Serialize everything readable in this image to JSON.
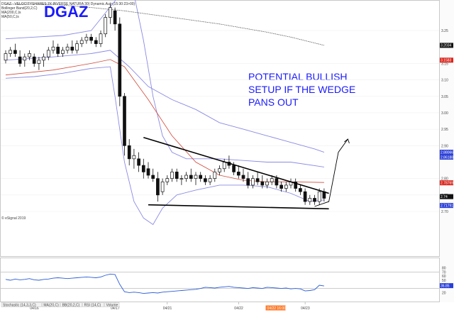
{
  "header": {
    "line1": "DGAZ - VELOCITYSHARES 3X INVERSE NATURA 30) Dynamic.Auto(15:30:23>00)",
    "line2": "Bollinger Band(20,2,C)",
    "line3": "MA(200,C,ls",
    "line4": "MA(50,C,ls"
  },
  "ticker": "DGAZ",
  "annotation_lines": [
    "POTENTIAL BULLISH",
    "SETUP IF THE WEDGE",
    "PANS OUT"
  ],
  "footer_tabs": [
    "Stochastic (14,3,3,C)",
    "MA(20,C)",
    "BB(20,2,C)",
    "RSI (14,C)",
    "Volume"
  ],
  "watermark": "© eSignal 2019",
  "colors": {
    "ticker_blue": "#1a1aff",
    "bollinger": "#8a8ae6",
    "ma50": "#d24a3a",
    "ma200": "#555555",
    "rsi_line": "#2a5bd6",
    "candle": "#111111",
    "tag_black": "#111111",
    "tag_red": "#d9251c",
    "tag_blue": "#2a3fd6",
    "date_tag": "#ff7a2a"
  },
  "chart_data": [
    {
      "type": "candlestick",
      "x_labels": [
        "04/16",
        "04/17",
        "04/21",
        "04/22",
        "04/23"
      ],
      "highlighted_x_label": "04/22 16:00",
      "yticks": [
        "3.25",
        "3.15",
        "3.10",
        "3.05",
        "3.00",
        "2.95",
        "2.90",
        "2.80",
        "2.75",
        "2.70"
      ],
      "ylim": [
        2.7,
        3.33
      ],
      "price_tags": [
        {
          "label": "3.2034",
          "value": 3.205,
          "style": "black"
        },
        {
          "label": "3.1583",
          "value": 3.16,
          "style": "red"
        },
        {
          "label": "2.88066",
          "value": 2.88,
          "style": "blue"
        },
        {
          "label": "2.86188",
          "value": 2.865,
          "style": "blue"
        },
        {
          "label": "2.78769",
          "value": 2.787,
          "style": "red"
        },
        {
          "label": "2.74",
          "value": 2.745,
          "style": "black"
        },
        {
          "label": "2.71791",
          "value": 2.718,
          "style": "blue"
        }
      ],
      "ohlc": [
        [
          3.16,
          3.19,
          3.15,
          3.18
        ],
        [
          3.18,
          3.2,
          3.17,
          3.19
        ],
        [
          3.19,
          3.21,
          3.17,
          3.18
        ],
        [
          3.17,
          3.19,
          3.14,
          3.15
        ],
        [
          3.16,
          3.18,
          3.14,
          3.17
        ],
        [
          3.17,
          3.19,
          3.16,
          3.18
        ],
        [
          3.17,
          3.18,
          3.14,
          3.15
        ],
        [
          3.15,
          3.17,
          3.13,
          3.16
        ],
        [
          3.16,
          3.18,
          3.14,
          3.17
        ],
        [
          3.17,
          3.2,
          3.16,
          3.19
        ],
        [
          3.19,
          3.22,
          3.18,
          3.2
        ],
        [
          3.2,
          3.21,
          3.17,
          3.18
        ],
        [
          3.18,
          3.2,
          3.17,
          3.19
        ],
        [
          3.19,
          3.21,
          3.18,
          3.2
        ],
        [
          3.2,
          3.22,
          3.18,
          3.19
        ],
        [
          3.19,
          3.22,
          3.18,
          3.21
        ],
        [
          3.21,
          3.23,
          3.2,
          3.22
        ],
        [
          3.22,
          3.24,
          3.21,
          3.23
        ],
        [
          3.23,
          3.24,
          3.21,
          3.22
        ],
        [
          3.22,
          3.23,
          3.2,
          3.21
        ],
        [
          3.21,
          3.25,
          3.2,
          3.24
        ],
        [
          3.24,
          3.3,
          3.23,
          3.29
        ],
        [
          3.29,
          3.33,
          3.27,
          3.32
        ],
        [
          3.31,
          3.32,
          3.25,
          3.27
        ],
        [
          3.27,
          3.29,
          3.02,
          3.05
        ],
        [
          3.05,
          3.06,
          2.87,
          2.9
        ],
        [
          2.9,
          2.92,
          2.84,
          2.86
        ],
        [
          2.86,
          2.89,
          2.83,
          2.87
        ],
        [
          2.86,
          2.88,
          2.82,
          2.84
        ],
        [
          2.84,
          2.86,
          2.8,
          2.82
        ],
        [
          2.83,
          2.85,
          2.8,
          2.81
        ],
        [
          2.81,
          2.83,
          2.79,
          2.8
        ],
        [
          2.8,
          2.82,
          2.73,
          2.75
        ],
        [
          2.76,
          2.8,
          2.75,
          2.79
        ],
        [
          2.79,
          2.81,
          2.78,
          2.8
        ],
        [
          2.8,
          2.83,
          2.79,
          2.82
        ],
        [
          2.82,
          2.83,
          2.79,
          2.8
        ],
        [
          2.8,
          2.81,
          2.78,
          2.8
        ],
        [
          2.8,
          2.82,
          2.79,
          2.81
        ],
        [
          2.81,
          2.83,
          2.79,
          2.8
        ],
        [
          2.8,
          2.82,
          2.78,
          2.81
        ],
        [
          2.81,
          2.82,
          2.79,
          2.8
        ],
        [
          2.8,
          2.81,
          2.78,
          2.79
        ],
        [
          2.79,
          2.81,
          2.78,
          2.8
        ],
        [
          2.8,
          2.83,
          2.79,
          2.82
        ],
        [
          2.82,
          2.84,
          2.81,
          2.83
        ],
        [
          2.83,
          2.86,
          2.82,
          2.85
        ],
        [
          2.85,
          2.87,
          2.83,
          2.84
        ],
        [
          2.84,
          2.85,
          2.81,
          2.82
        ],
        [
          2.82,
          2.84,
          2.8,
          2.81
        ],
        [
          2.81,
          2.83,
          2.79,
          2.8
        ],
        [
          2.8,
          2.82,
          2.77,
          2.78
        ],
        [
          2.78,
          2.81,
          2.77,
          2.8
        ],
        [
          2.8,
          2.82,
          2.78,
          2.79
        ],
        [
          2.79,
          2.81,
          2.77,
          2.78
        ],
        [
          2.78,
          2.8,
          2.77,
          2.79
        ],
        [
          2.79,
          2.81,
          2.78,
          2.8
        ],
        [
          2.8,
          2.81,
          2.77,
          2.78
        ],
        [
          2.78,
          2.79,
          2.76,
          2.77
        ],
        [
          2.77,
          2.79,
          2.76,
          2.78
        ],
        [
          2.78,
          2.8,
          2.77,
          2.79
        ],
        [
          2.79,
          2.8,
          2.76,
          2.77
        ],
        [
          2.77,
          2.78,
          2.75,
          2.76
        ],
        [
          2.76,
          2.77,
          2.72,
          2.73
        ],
        [
          2.73,
          2.75,
          2.72,
          2.74
        ],
        [
          2.74,
          2.75,
          2.72,
          2.73
        ],
        [
          2.73,
          2.77,
          2.72,
          2.76
        ],
        [
          2.76,
          2.77,
          2.73,
          2.74
        ]
      ],
      "overlays": {
        "bollinger_upper": [
          [
            0,
            3.225
          ],
          [
            6,
            3.23
          ],
          [
            12,
            3.235
          ],
          [
            18,
            3.25
          ],
          [
            23,
            3.34
          ],
          [
            25,
            3.4
          ],
          [
            27,
            3.36
          ],
          [
            29,
            3.22
          ],
          [
            31,
            3.05
          ],
          [
            33,
            2.93
          ],
          [
            35,
            2.88
          ],
          [
            38,
            2.86
          ],
          [
            45,
            2.86
          ],
          [
            50,
            2.855
          ],
          [
            55,
            2.85
          ],
          [
            60,
            2.85
          ],
          [
            67,
            2.835
          ]
        ],
        "bollinger_lower": [
          [
            0,
            3.105
          ],
          [
            6,
            3.11
          ],
          [
            12,
            3.12
          ],
          [
            18,
            3.135
          ],
          [
            22,
            3.14
          ],
          [
            23,
            3.05
          ],
          [
            25,
            2.85
          ],
          [
            27,
            2.73
          ],
          [
            29,
            2.68
          ],
          [
            31,
            2.66
          ],
          [
            33,
            2.71
          ],
          [
            36,
            2.75
          ],
          [
            40,
            2.765
          ],
          [
            45,
            2.78
          ],
          [
            50,
            2.78
          ],
          [
            55,
            2.775
          ],
          [
            60,
            2.755
          ],
          [
            64,
            2.73
          ],
          [
            67,
            2.735
          ]
        ],
        "ma50": [
          [
            0,
            3.115
          ],
          [
            10,
            3.13
          ],
          [
            18,
            3.15
          ],
          [
            22,
            3.162
          ],
          [
            25,
            3.14
          ],
          [
            30,
            3.04
          ],
          [
            35,
            2.93
          ],
          [
            40,
            2.85
          ],
          [
            45,
            2.81
          ],
          [
            50,
            2.795
          ],
          [
            55,
            2.79
          ],
          [
            60,
            2.79
          ],
          [
            67,
            2.788
          ]
        ],
        "ma200": [
          [
            0,
            3.33
          ],
          [
            10,
            3.33
          ],
          [
            18,
            3.32
          ],
          [
            25,
            3.31
          ],
          [
            35,
            3.29
          ],
          [
            45,
            3.27
          ],
          [
            55,
            3.245
          ],
          [
            60,
            3.23
          ],
          [
            67,
            3.205
          ]
        ],
        "bb_middle": [
          [
            0,
            3.16
          ],
          [
            10,
            3.17
          ],
          [
            18,
            3.18
          ],
          [
            22,
            3.19
          ],
          [
            26,
            3.14
          ],
          [
            30,
            3.08
          ],
          [
            35,
            3.04
          ],
          [
            40,
            3.01
          ],
          [
            45,
            2.97
          ],
          [
            50,
            2.95
          ],
          [
            55,
            2.93
          ],
          [
            60,
            2.91
          ],
          [
            65,
            2.89
          ],
          [
            67,
            2.88
          ]
        ]
      },
      "wedge_upper": [
        [
          29,
          2.925
        ],
        [
          68,
          2.755
        ]
      ],
      "wedge_lower": [
        [
          30,
          2.72
        ],
        [
          68,
          2.708
        ]
      ],
      "projection": [
        [
          65,
          2.715
        ],
        [
          68,
          2.73
        ],
        [
          70,
          2.88
        ],
        [
          72,
          2.92
        ]
      ]
    },
    {
      "type": "line",
      "ylim": [
        0,
        100
      ],
      "levels": [
        30,
        70
      ],
      "right_labels": [
        {
          "label": "80",
          "value": 80,
          "style": "plain"
        },
        {
          "label": "70",
          "value": 70,
          "style": "plain"
        },
        {
          "label": "60",
          "value": 60,
          "style": "plain"
        },
        {
          "label": "50",
          "value": 50,
          "style": "plain"
        },
        {
          "label": "40",
          "value": 40,
          "style": "plain"
        },
        {
          "label": "36.85",
          "value": 36.85,
          "style": "blue"
        },
        {
          "label": "20",
          "value": 20,
          "style": "plain"
        }
      ],
      "values": [
        52,
        50,
        53,
        51,
        52,
        54,
        51,
        50,
        52,
        53,
        55,
        56,
        55,
        54,
        55,
        56,
        57,
        58,
        57,
        56,
        58,
        62,
        65,
        64,
        40,
        22,
        20,
        21,
        20,
        18,
        19,
        20,
        19,
        21,
        22,
        23,
        24,
        25,
        26,
        27,
        28,
        30,
        33,
        32,
        31,
        33,
        34,
        35,
        33,
        32,
        31,
        30,
        32,
        31,
        30,
        33,
        32,
        31,
        30,
        31,
        29,
        30,
        29,
        24,
        25,
        27,
        38,
        36
      ]
    }
  ]
}
